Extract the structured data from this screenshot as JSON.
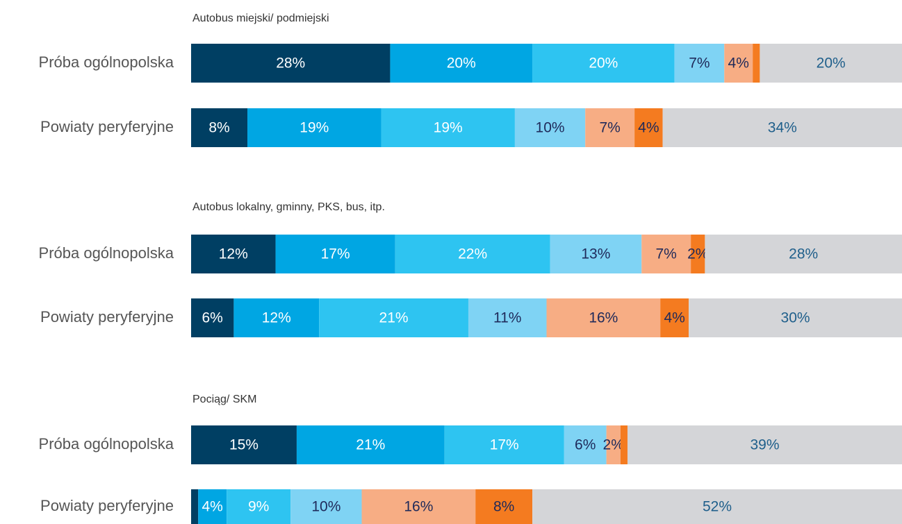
{
  "chart_data": [
    {
      "type": "bar",
      "orientation": "horizontal",
      "stacked": true,
      "title": "Autobus miejski/ podmiejski",
      "categories": [
        "Próba ogólnopolska",
        "Powiaty peryferyjne"
      ],
      "series": [
        {
          "color": "#003f63",
          "label_color": "#ffffff",
          "values": [
            28,
            8
          ],
          "value_labels": [
            "28%",
            "8%"
          ]
        },
        {
          "color": "#00a6e3",
          "label_color": "#ffffff",
          "values": [
            20,
            19
          ],
          "value_labels": [
            "20%",
            "19%"
          ]
        },
        {
          "color": "#2ec4f1",
          "label_color": "#ffffff",
          "values": [
            20,
            19
          ],
          "value_labels": [
            "20%",
            "19%"
          ]
        },
        {
          "color": "#7fd3f4",
          "label_color": "#1f2a5a",
          "values": [
            7,
            10
          ],
          "value_labels": [
            "7%",
            "10%"
          ]
        },
        {
          "color": "#f7ad84",
          "label_color": "#1f2a5a",
          "values": [
            4,
            7
          ],
          "value_labels": [
            "4%",
            "7%"
          ]
        },
        {
          "color": "#f47b20",
          "label_color": "#1f2a5a",
          "values": [
            1,
            4
          ],
          "value_labels": [
            null,
            "4%"
          ]
        },
        {
          "color": "#d4d5d8",
          "label_color": "#1f5f8b",
          "values": [
            20,
            34
          ],
          "value_labels": [
            "20%",
            "34%"
          ]
        }
      ]
    },
    {
      "type": "bar",
      "orientation": "horizontal",
      "stacked": true,
      "title": "Autobus lokalny, gminny, PKS, bus, itp.",
      "categories": [
        "Próba ogólnopolska",
        "Powiaty peryferyjne"
      ],
      "series": [
        {
          "color": "#003f63",
          "label_color": "#ffffff",
          "values": [
            12,
            6
          ],
          "value_labels": [
            "12%",
            "6%"
          ]
        },
        {
          "color": "#00a6e3",
          "label_color": "#ffffff",
          "values": [
            17,
            12
          ],
          "value_labels": [
            "17%",
            "12%"
          ]
        },
        {
          "color": "#2ec4f1",
          "label_color": "#ffffff",
          "values": [
            22,
            21
          ],
          "value_labels": [
            "22%",
            "21%"
          ]
        },
        {
          "color": "#7fd3f4",
          "label_color": "#1f2a5a",
          "values": [
            13,
            11
          ],
          "value_labels": [
            "13%",
            "11%"
          ]
        },
        {
          "color": "#f7ad84",
          "label_color": "#1f2a5a",
          "values": [
            7,
            16
          ],
          "value_labels": [
            "7%",
            "16%"
          ]
        },
        {
          "color": "#f47b20",
          "label_color": "#1f2a5a",
          "values": [
            2,
            4
          ],
          "value_labels": [
            "2%",
            "4%"
          ]
        },
        {
          "color": "#d4d5d8",
          "label_color": "#1f5f8b",
          "values": [
            28,
            30
          ],
          "value_labels": [
            "28%",
            "30%"
          ]
        }
      ]
    },
    {
      "type": "bar",
      "orientation": "horizontal",
      "stacked": true,
      "title": "Pociąg/ SKM",
      "categories": [
        "Próba ogólnopolska",
        "Powiaty peryferyjne"
      ],
      "series": [
        {
          "color": "#003f63",
          "label_color": "#ffffff",
          "values": [
            15,
            1
          ],
          "value_labels": [
            "15%",
            null
          ]
        },
        {
          "color": "#00a6e3",
          "label_color": "#ffffff",
          "values": [
            21,
            4
          ],
          "value_labels": [
            "21%",
            "4%"
          ]
        },
        {
          "color": "#2ec4f1",
          "label_color": "#ffffff",
          "values": [
            17,
            9
          ],
          "value_labels": [
            "17%",
            "9%"
          ]
        },
        {
          "color": "#7fd3f4",
          "label_color": "#1f2a5a",
          "values": [
            6,
            10
          ],
          "value_labels": [
            "6%",
            "10%"
          ]
        },
        {
          "color": "#f7ad84",
          "label_color": "#1f2a5a",
          "values": [
            2,
            16
          ],
          "value_labels": [
            "2%",
            "16%"
          ]
        },
        {
          "color": "#f47b20",
          "label_color": "#1f2a5a",
          "values": [
            1,
            8
          ],
          "value_labels": [
            null,
            "8%"
          ]
        },
        {
          "color": "#d4d5d8",
          "label_color": "#1f5f8b",
          "values": [
            39,
            52
          ],
          "value_labels": [
            "39%",
            "52%"
          ]
        }
      ]
    }
  ]
}
